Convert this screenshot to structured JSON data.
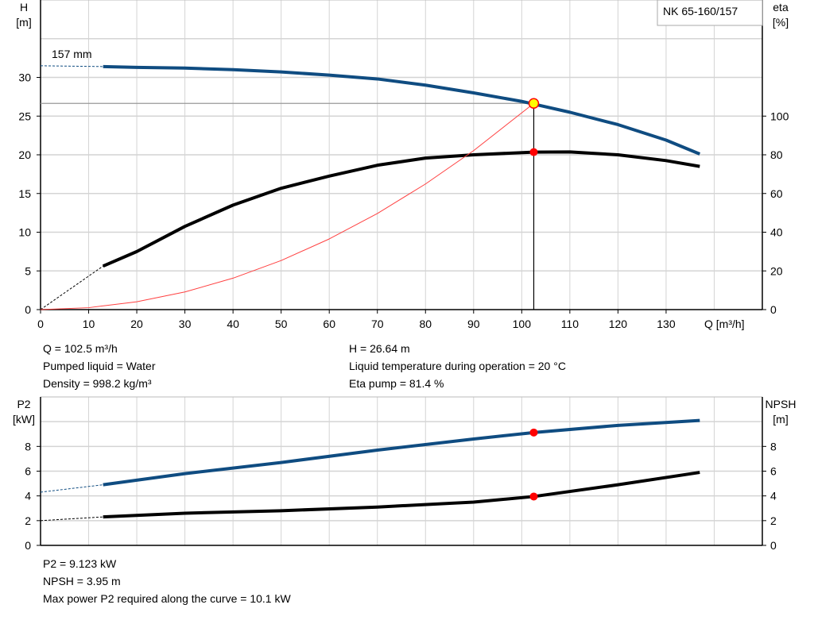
{
  "chart_data": [
    {
      "type": "line",
      "model_label": "NK 65-160/157",
      "impeller_label": "157 mm",
      "xlabel": "Q [m³/h]",
      "xlim": [
        0,
        150
      ],
      "xticks": [
        0,
        10,
        20,
        30,
        40,
        50,
        60,
        70,
        80,
        90,
        100,
        110,
        120,
        130
      ],
      "left_axis": {
        "label": "H",
        "unit": "[m]",
        "ylim": [
          0,
          40
        ],
        "ticks": [
          0,
          5,
          10,
          15,
          20,
          25,
          30
        ]
      },
      "right_axis": {
        "label": "eta",
        "unit": "[%]",
        "ylim": [
          0,
          160
        ],
        "ticks": [
          0,
          20,
          40,
          60,
          80,
          100
        ]
      },
      "grid": true,
      "series": [
        {
          "id": "head",
          "axis": "left",
          "color": "#0f4c81",
          "x": [
            13,
            20,
            30,
            40,
            50,
            60,
            70,
            80,
            90,
            100,
            110,
            120,
            130,
            137
          ],
          "y": [
            31.4,
            31.3,
            31.2,
            31.0,
            30.7,
            30.3,
            29.8,
            29.0,
            28.0,
            26.9,
            25.5,
            23.9,
            21.9,
            20.1
          ],
          "extrapolated": {
            "x": [
              0,
              13
            ],
            "y": [
              31.5,
              31.4
            ]
          }
        },
        {
          "id": "efficiency",
          "axis": "right",
          "color": "#000000",
          "x": [
            13,
            20,
            30,
            40,
            50,
            60,
            70,
            80,
            90,
            102.5,
            110,
            120,
            130,
            137
          ],
          "y": [
            22.5,
            30,
            43,
            54,
            62.7,
            69,
            74.6,
            78.3,
            80,
            81.4,
            81.5,
            80,
            77,
            74
          ],
          "extrapolated": {
            "x": [
              0,
              13
            ],
            "y": [
              0,
              22.5
            ]
          }
        },
        {
          "id": "system-curve",
          "axis": "left",
          "color": "#ff4040",
          "x": [
            0,
            10,
            20,
            30,
            40,
            50,
            60,
            70,
            80,
            90,
            102.5
          ],
          "y": [
            0,
            0.25,
            1.01,
            2.28,
            4.06,
            6.34,
            9.13,
            12.42,
            16.23,
            20.54,
            26.64
          ]
        }
      ],
      "operating_point": {
        "Q": 102.5,
        "H": 26.64,
        "eta": 81.4
      }
    },
    {
      "type": "line",
      "xlim": [
        0,
        150
      ],
      "left_axis": {
        "label": "P2",
        "unit": "[kW]",
        "ylim": [
          0,
          12
        ],
        "ticks": [
          0,
          2,
          4,
          6,
          8
        ]
      },
      "right_axis": {
        "label": "NPSH",
        "unit": "[m]",
        "ylim": [
          0,
          12
        ],
        "ticks": [
          0,
          2,
          4,
          6,
          8
        ]
      },
      "grid": true,
      "series": [
        {
          "id": "p2",
          "axis": "left",
          "color": "#0f4c81",
          "x": [
            13,
            30,
            50,
            70,
            90,
            102.5,
            120,
            137
          ],
          "y": [
            4.9,
            5.8,
            6.7,
            7.7,
            8.6,
            9.123,
            9.7,
            10.1
          ],
          "extrapolated": {
            "x": [
              0,
              13
            ],
            "y": [
              4.3,
              4.9
            ]
          }
        },
        {
          "id": "npsh",
          "axis": "right",
          "color": "#000000",
          "x": [
            13,
            30,
            50,
            70,
            90,
            102.5,
            120,
            137
          ],
          "y": [
            2.3,
            2.6,
            2.8,
            3.1,
            3.5,
            3.95,
            4.9,
            5.9
          ],
          "extrapolated": {
            "x": [
              0,
              13
            ],
            "y": [
              2.0,
              2.3
            ]
          }
        }
      ],
      "operating_point": {
        "Q": 102.5,
        "P2": 9.123,
        "NPSH": 3.95
      }
    }
  ],
  "info_top": {
    "q": "Q = 102.5 m³/h",
    "liquid": "Pumped liquid = Water",
    "density": "Density = 998.2 kg/m³",
    "h": "H = 26.64 m",
    "temperature": "Liquid temperature during operation = 20 °C",
    "eta": "Eta pump = 81.4 %"
  },
  "info_bottom": {
    "p2": "P2 = 9.123 kW",
    "npsh": "NPSH = 3.95 m",
    "max_power": "Max power P2 required along the curve = 10.1 kW"
  }
}
